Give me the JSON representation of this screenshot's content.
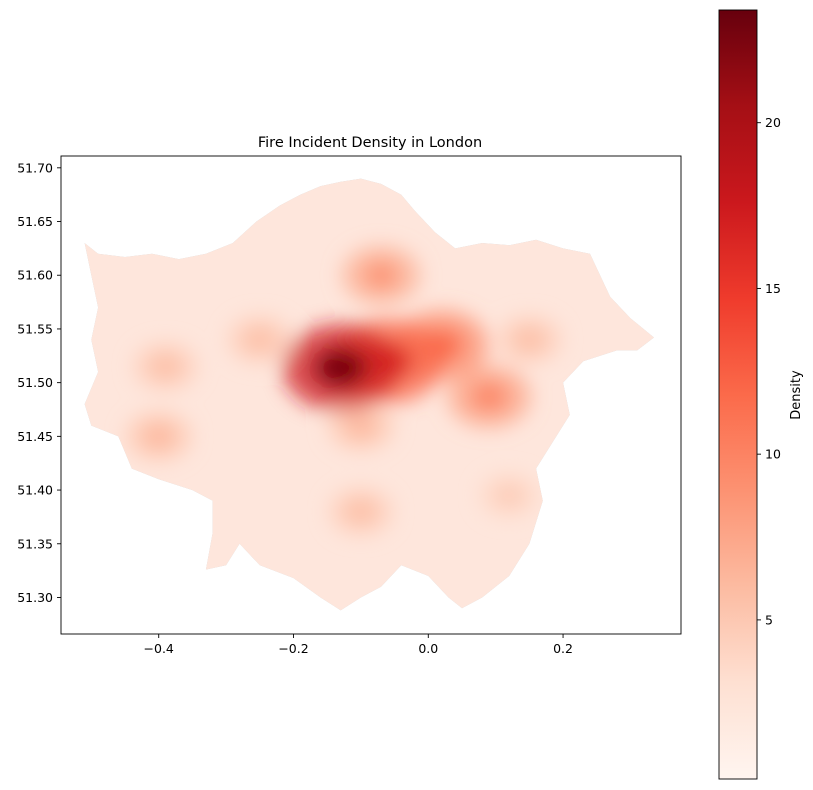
{
  "chart_data": {
    "type": "heatmap",
    "title": "Fire Incident Density in London",
    "xlabel": "",
    "ylabel": "",
    "xlim": [
      -0.545,
      0.375
    ],
    "ylim": [
      51.266,
      51.711
    ],
    "x_ticks": [
      {
        "value": -0.4,
        "label": "−0.4"
      },
      {
        "value": -0.2,
        "label": "−0.2"
      },
      {
        "value": 0.0,
        "label": "0.0"
      },
      {
        "value": 0.2,
        "label": "0.2"
      }
    ],
    "y_ticks": [
      {
        "value": 51.3,
        "label": "51.30"
      },
      {
        "value": 51.35,
        "label": "51.35"
      },
      {
        "value": 51.4,
        "label": "51.40"
      },
      {
        "value": 51.45,
        "label": "51.45"
      },
      {
        "value": 51.5,
        "label": "51.50"
      },
      {
        "value": 51.55,
        "label": "51.55"
      },
      {
        "value": 51.6,
        "label": "51.60"
      },
      {
        "value": 51.65,
        "label": "51.65"
      },
      {
        "value": 51.7,
        "label": "51.70"
      }
    ],
    "grid": false,
    "colormap": "Reds",
    "base_color": "#d3d3d3",
    "colorbar": {
      "label": "Density",
      "range": [
        0.2,
        23.4
      ],
      "ticks": [
        {
          "value": 5,
          "label": "5"
        },
        {
          "value": 10,
          "label": "10"
        },
        {
          "value": 15,
          "label": "15"
        },
        {
          "value": 20,
          "label": "20"
        }
      ]
    },
    "boundary": [
      [
        -0.51,
        51.63
      ],
      [
        -0.49,
        51.62
      ],
      [
        -0.45,
        51.617
      ],
      [
        -0.41,
        51.62
      ],
      [
        -0.37,
        51.615
      ],
      [
        -0.33,
        51.62
      ],
      [
        -0.29,
        51.63
      ],
      [
        -0.255,
        51.65
      ],
      [
        -0.22,
        51.665
      ],
      [
        -0.19,
        51.675
      ],
      [
        -0.16,
        51.683
      ],
      [
        -0.13,
        51.687
      ],
      [
        -0.1,
        51.69
      ],
      [
        -0.07,
        51.685
      ],
      [
        -0.04,
        51.675
      ],
      [
        -0.02,
        51.66
      ],
      [
        0.01,
        51.64
      ],
      [
        0.04,
        51.625
      ],
      [
        0.08,
        51.63
      ],
      [
        0.12,
        51.628
      ],
      [
        0.16,
        51.633
      ],
      [
        0.2,
        51.625
      ],
      [
        0.24,
        51.62
      ],
      [
        0.27,
        51.58
      ],
      [
        0.3,
        51.56
      ],
      [
        0.335,
        51.542
      ],
      [
        0.31,
        51.53
      ],
      [
        0.28,
        51.53
      ],
      [
        0.23,
        51.52
      ],
      [
        0.2,
        51.5
      ],
      [
        0.21,
        51.47
      ],
      [
        0.19,
        51.45
      ],
      [
        0.16,
        51.42
      ],
      [
        0.17,
        51.39
      ],
      [
        0.15,
        51.35
      ],
      [
        0.12,
        51.32
      ],
      [
        0.08,
        51.3
      ],
      [
        0.05,
        51.29
      ],
      [
        0.03,
        51.3
      ],
      [
        0.0,
        51.32
      ],
      [
        -0.04,
        51.33
      ],
      [
        -0.07,
        51.31
      ],
      [
        -0.1,
        51.3
      ],
      [
        -0.13,
        51.288
      ],
      [
        -0.16,
        51.3
      ],
      [
        -0.2,
        51.318
      ],
      [
        -0.25,
        51.33
      ],
      [
        -0.28,
        51.35
      ],
      [
        -0.3,
        51.33
      ],
      [
        -0.33,
        51.326
      ],
      [
        -0.32,
        51.36
      ],
      [
        -0.32,
        51.39
      ],
      [
        -0.35,
        51.4
      ],
      [
        -0.4,
        51.41
      ],
      [
        -0.44,
        51.42
      ],
      [
        -0.46,
        51.45
      ],
      [
        -0.5,
        51.46
      ],
      [
        -0.51,
        51.48
      ],
      [
        -0.49,
        51.51
      ],
      [
        -0.5,
        51.54
      ],
      [
        -0.49,
        51.57
      ],
      [
        -0.5,
        51.6
      ]
    ],
    "hotspots": [
      {
        "lon": -0.13,
        "lat": 51.514,
        "density": 23.0
      },
      {
        "lon": -0.06,
        "lat": 51.52,
        "density": 16.0
      },
      {
        "lon": 0.02,
        "lat": 51.535,
        "density": 12.0
      },
      {
        "lon": -0.07,
        "lat": 51.6,
        "density": 9.0
      },
      {
        "lon": 0.09,
        "lat": 51.487,
        "density": 10.0
      },
      {
        "lon": -0.39,
        "lat": 51.515,
        "density": 6.0
      },
      {
        "lon": -0.4,
        "lat": 51.45,
        "density": 6.5
      },
      {
        "lon": -0.25,
        "lat": 51.54,
        "density": 6.0
      },
      {
        "lon": -0.1,
        "lat": 51.38,
        "density": 6.0
      },
      {
        "lon": 0.12,
        "lat": 51.395,
        "density": 5.0
      },
      {
        "lon": 0.15,
        "lat": 51.54,
        "density": 6.0
      },
      {
        "lon": -0.1,
        "lat": 51.46,
        "density": 6.5
      }
    ]
  }
}
